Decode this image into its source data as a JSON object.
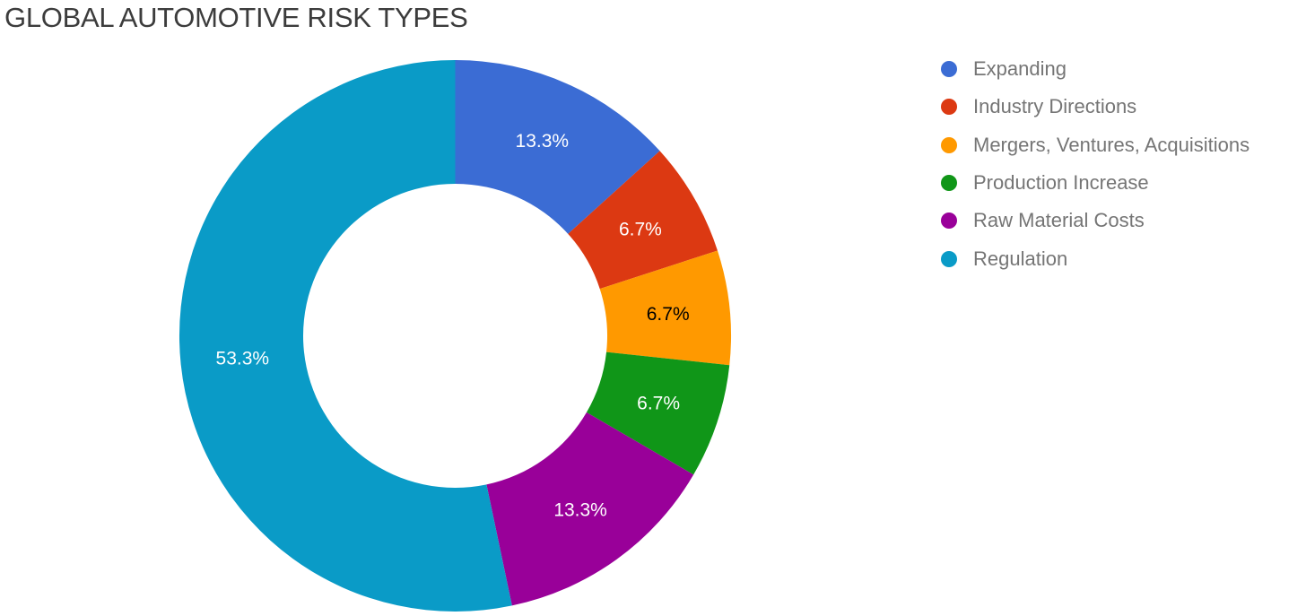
{
  "title": "GLOBAL AUTOMOTIVE RISK TYPES",
  "chart_data": {
    "type": "pie",
    "subtype": "donut",
    "title": "GLOBAL AUTOMOTIVE RISK TYPES",
    "categories": [
      "Expanding",
      "Industry Directions",
      "Mergers, Ventures, Acquisitions",
      "Production Increase",
      "Raw Material Costs",
      "Regulation"
    ],
    "values": [
      13.3,
      6.7,
      6.7,
      6.7,
      13.3,
      53.3
    ],
    "slice_labels": [
      "13.3%",
      "6.7%",
      "6.7%",
      "6.7%",
      "13.3%",
      "53.3%"
    ],
    "colors": [
      "#3B6CD4",
      "#DC3912",
      "#FF9900",
      "#109618",
      "#990099",
      "#0A9BC7"
    ],
    "slice_label_colors": [
      "#ffffff",
      "#ffffff",
      "#000000",
      "#ffffff",
      "#ffffff",
      "#ffffff"
    ],
    "legend_position": "right",
    "pie_hole": 0.55,
    "start_angle_deg": 0,
    "grid": false
  },
  "legend": {
    "items": [
      {
        "label": "Expanding",
        "color": "#3B6CD4"
      },
      {
        "label": "Industry Directions",
        "color": "#DC3912"
      },
      {
        "label": "Mergers, Ventures, Acquisitions",
        "color": "#FF9900"
      },
      {
        "label": "Production Increase",
        "color": "#109618"
      },
      {
        "label": "Raw Material Costs",
        "color": "#990099"
      },
      {
        "label": "Regulation",
        "color": "#0A9BC7"
      }
    ]
  },
  "colors": {
    "background": "#ffffff",
    "title_text": "#3c3c3c",
    "legend_text": "#757575"
  }
}
